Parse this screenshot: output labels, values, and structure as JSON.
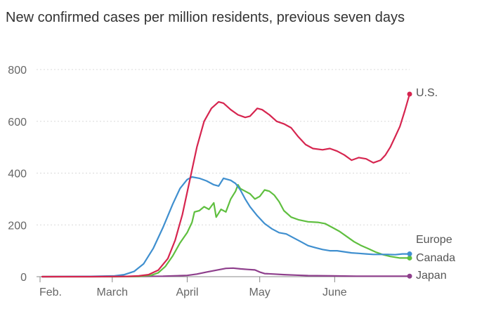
{
  "title": "New confirmed cases per million residents, previous seven days",
  "chart_data": {
    "type": "line",
    "title": "New confirmed cases per million residents, previous seven days",
    "xlabel": "",
    "ylabel": "",
    "x_range_days": [
      0,
      146
    ],
    "x_ticks": [
      {
        "label": "Feb.",
        "day": 0
      },
      {
        "label": "March",
        "day": 29
      },
      {
        "label": "April",
        "day": 60
      },
      {
        "label": "May",
        "day": 90
      },
      {
        "label": "June",
        "day": 121
      }
    ],
    "ylim": [
      0,
      800
    ],
    "y_ticks": [
      0,
      200,
      400,
      600,
      800
    ],
    "grid": true,
    "legend": "end-of-line labels",
    "series": [
      {
        "name": "U.S.",
        "color": "#d6254f",
        "points": [
          [
            0,
            0
          ],
          [
            20,
            0
          ],
          [
            35,
            1
          ],
          [
            40,
            3
          ],
          [
            44,
            8
          ],
          [
            48,
            25
          ],
          [
            52,
            70
          ],
          [
            55,
            140
          ],
          [
            58,
            240
          ],
          [
            61,
            370
          ],
          [
            64,
            500
          ],
          [
            67,
            600
          ],
          [
            70,
            650
          ],
          [
            73,
            675
          ],
          [
            75,
            670
          ],
          [
            78,
            645
          ],
          [
            81,
            625
          ],
          [
            84,
            615
          ],
          [
            86,
            620
          ],
          [
            88,
            640
          ],
          [
            89,
            650
          ],
          [
            91,
            645
          ],
          [
            94,
            625
          ],
          [
            97,
            600
          ],
          [
            100,
            590
          ],
          [
            103,
            575
          ],
          [
            106,
            540
          ],
          [
            109,
            510
          ],
          [
            112,
            495
          ],
          [
            116,
            490
          ],
          [
            119,
            495
          ],
          [
            122,
            485
          ],
          [
            125,
            470
          ],
          [
            128,
            450
          ],
          [
            131,
            460
          ],
          [
            134,
            455
          ],
          [
            137,
            440
          ],
          [
            140,
            450
          ],
          [
            142,
            470
          ],
          [
            144,
            500
          ],
          [
            146,
            540
          ],
          [
            148,
            580
          ],
          [
            150,
            640
          ],
          [
            152,
            705
          ]
        ]
      },
      {
        "name": "Europe",
        "color": "#3f8fcf",
        "points": [
          [
            0,
            0
          ],
          [
            20,
            1
          ],
          [
            30,
            3
          ],
          [
            34,
            8
          ],
          [
            38,
            20
          ],
          [
            42,
            50
          ],
          [
            46,
            110
          ],
          [
            50,
            190
          ],
          [
            54,
            280
          ],
          [
            57,
            340
          ],
          [
            60,
            375
          ],
          [
            62,
            385
          ],
          [
            65,
            380
          ],
          [
            68,
            370
          ],
          [
            71,
            355
          ],
          [
            73,
            350
          ],
          [
            75,
            380
          ],
          [
            78,
            372
          ],
          [
            80,
            360
          ],
          [
            82,
            335
          ],
          [
            84,
            300
          ],
          [
            86,
            270
          ],
          [
            89,
            235
          ],
          [
            92,
            205
          ],
          [
            95,
            185
          ],
          [
            98,
            170
          ],
          [
            101,
            165
          ],
          [
            104,
            150
          ],
          [
            107,
            135
          ],
          [
            110,
            120
          ],
          [
            113,
            112
          ],
          [
            116,
            105
          ],
          [
            119,
            100
          ],
          [
            122,
            100
          ],
          [
            125,
            96
          ],
          [
            128,
            92
          ],
          [
            131,
            90
          ],
          [
            134,
            88
          ],
          [
            137,
            86
          ],
          [
            140,
            86
          ],
          [
            143,
            86
          ],
          [
            146,
            85
          ],
          [
            149,
            88
          ],
          [
            152,
            88
          ]
        ]
      },
      {
        "name": "Canada",
        "color": "#5fbf3f",
        "points": [
          [
            0,
            0
          ],
          [
            30,
            0
          ],
          [
            40,
            1
          ],
          [
            45,
            5
          ],
          [
            48,
            15
          ],
          [
            51,
            40
          ],
          [
            54,
            80
          ],
          [
            57,
            130
          ],
          [
            60,
            170
          ],
          [
            62,
            210
          ],
          [
            63,
            250
          ],
          [
            65,
            255
          ],
          [
            67,
            270
          ],
          [
            69,
            260
          ],
          [
            71,
            285
          ],
          [
            72,
            230
          ],
          [
            74,
            260
          ],
          [
            76,
            250
          ],
          [
            78,
            300
          ],
          [
            80,
            330
          ],
          [
            81,
            355
          ],
          [
            82,
            340
          ],
          [
            84,
            330
          ],
          [
            86,
            320
          ],
          [
            88,
            300
          ],
          [
            90,
            310
          ],
          [
            92,
            335
          ],
          [
            94,
            330
          ],
          [
            96,
            315
          ],
          [
            98,
            290
          ],
          [
            100,
            255
          ],
          [
            103,
            230
          ],
          [
            106,
            220
          ],
          [
            110,
            212
          ],
          [
            114,
            210
          ],
          [
            117,
            205
          ],
          [
            120,
            190
          ],
          [
            123,
            175
          ],
          [
            126,
            155
          ],
          [
            129,
            135
          ],
          [
            132,
            120
          ],
          [
            135,
            108
          ],
          [
            138,
            95
          ],
          [
            141,
            85
          ],
          [
            144,
            78
          ],
          [
            148,
            72
          ],
          [
            152,
            72
          ]
        ]
      },
      {
        "name": "Japan",
        "color": "#8e3f8c",
        "points": [
          [
            0,
            0
          ],
          [
            40,
            1
          ],
          [
            50,
            2
          ],
          [
            60,
            5
          ],
          [
            64,
            10
          ],
          [
            68,
            18
          ],
          [
            72,
            25
          ],
          [
            76,
            32
          ],
          [
            79,
            33
          ],
          [
            82,
            30
          ],
          [
            85,
            28
          ],
          [
            88,
            26
          ],
          [
            90,
            18
          ],
          [
            92,
            12
          ],
          [
            96,
            10
          ],
          [
            100,
            8
          ],
          [
            105,
            6
          ],
          [
            110,
            4
          ],
          [
            120,
            3
          ],
          [
            130,
            2
          ],
          [
            140,
            2
          ],
          [
            152,
            2
          ]
        ]
      }
    ]
  }
}
